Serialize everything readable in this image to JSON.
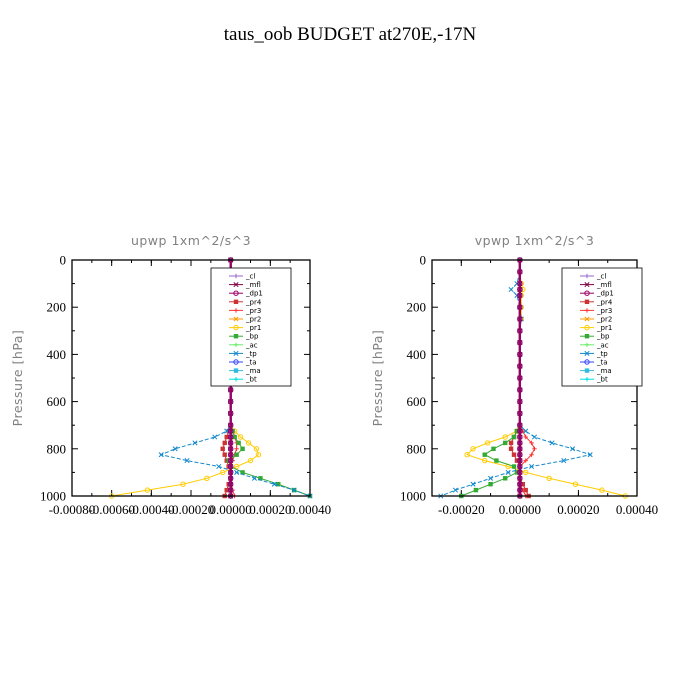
{
  "figure": {
    "title": "taus_oob  BUDGET at270E,-17N"
  },
  "chart_data": [
    {
      "type": "line",
      "title": "upwp   1xm^2/s^3",
      "ylabel": "Pressure [hPa]",
      "xlim": [
        -0.0008,
        0.0004
      ],
      "ylim": [
        1000,
        0
      ],
      "xticks": [
        -0.0008,
        -0.0006,
        -0.0004,
        -0.0002,
        0.0,
        0.0002,
        0.0004
      ],
      "xtick_labels": [
        "-0.00080",
        "-0.00060",
        "-0.00040",
        "-0.00020",
        "0.00000",
        "0.00020",
        "0.00040"
      ],
      "yticks": [
        0,
        200,
        400,
        600,
        800,
        1000
      ],
      "ytick_labels": [
        "0",
        "200",
        "400",
        "600",
        "800",
        "1000"
      ],
      "y": [
        0,
        50,
        100,
        150,
        200,
        250,
        300,
        350,
        400,
        450,
        500,
        550,
        600,
        650,
        700,
        725,
        750,
        775,
        800,
        825,
        850,
        875,
        900,
        925,
        950,
        975,
        1000
      ],
      "legend_position": "top-right",
      "series": [
        {
          "name": "_cl",
          "color": "#9966cc",
          "values": [
            0,
            0,
            0,
            0,
            0,
            0,
            0,
            0,
            0,
            0,
            0,
            0,
            0,
            0,
            0,
            0,
            0,
            0,
            0,
            0,
            0,
            0,
            0,
            0,
            0,
            0,
            0
          ]
        },
        {
          "name": "_mfl",
          "color": "#800040",
          "values": [
            0,
            0,
            0,
            0,
            0,
            0,
            0,
            0,
            0,
            0,
            0,
            0,
            0,
            0,
            0,
            0,
            0,
            0,
            0,
            0,
            0,
            0,
            0,
            0,
            0,
            0,
            0
          ]
        },
        {
          "name": "_dp1",
          "color": "#990066",
          "values": [
            0,
            0,
            0,
            0,
            0,
            0,
            0,
            0,
            0,
            0,
            0,
            0,
            0,
            0,
            0,
            0,
            0,
            0,
            0,
            0,
            0,
            0,
            0,
            0,
            0,
            0,
            0
          ]
        },
        {
          "name": "_pr4",
          "color": "#cc3333",
          "values": [
            0,
            0,
            0,
            0,
            0,
            0,
            0,
            0,
            0,
            0,
            0,
            0,
            0,
            0,
            0,
            -1e-05,
            -2e-05,
            -3e-05,
            -4e-05,
            -3e-05,
            -2e-05,
            -1e-05,
            0,
            0,
            -1e-05,
            -2e-05,
            -3e-05
          ]
        },
        {
          "name": "_pr3",
          "color": "#ff3333",
          "values": [
            0,
            0,
            0,
            0,
            0,
            0,
            0,
            0,
            0,
            0,
            0,
            0,
            0,
            0,
            0,
            1e-05,
            2e-05,
            3e-05,
            3e-05,
            2e-05,
            1e-05,
            0,
            0,
            0,
            0,
            1e-05,
            2e-05
          ]
        },
        {
          "name": "_pr2",
          "color": "#ff9900",
          "values": [
            0,
            0,
            0,
            0,
            0,
            0,
            0,
            0,
            0,
            0,
            0,
            0,
            0,
            0,
            0,
            0,
            0,
            0,
            0,
            0,
            0,
            0,
            0,
            0,
            0,
            0,
            0
          ]
        },
        {
          "name": "_pr1",
          "color": "#ffcc00",
          "values": [
            0,
            0,
            0,
            0,
            0,
            0,
            0,
            0,
            0,
            0,
            0,
            0,
            0,
            0,
            0,
            2e-05,
            5e-05,
            9e-05,
            0.00013,
            0.00014,
            0.0001,
            3e-05,
            -4e-05,
            -0.00012,
            -0.00024,
            -0.00042,
            -0.0006
          ]
        },
        {
          "name": "_bp",
          "color": "#33aa33",
          "values": [
            0,
            0,
            0,
            0,
            0,
            0,
            0,
            0,
            0,
            0,
            0,
            0,
            0,
            0,
            0,
            1e-05,
            2e-05,
            4e-05,
            6e-05,
            3e-05,
            -1e-05,
            0,
            6e-05,
            0.00015,
            0.00024,
            0.00032,
            0.0004
          ]
        },
        {
          "name": "_ac",
          "color": "#66ee66",
          "values": [
            0,
            0,
            0,
            0,
            0,
            0,
            0,
            0,
            0,
            0,
            0,
            0,
            0,
            0,
            0,
            0,
            0,
            0,
            0,
            0,
            0,
            0,
            0,
            0,
            0,
            0,
            0
          ]
        },
        {
          "name": "_tp",
          "color": "#1188cc",
          "values": [
            0,
            0,
            0,
            0,
            0,
            0,
            0,
            0,
            0,
            0,
            0,
            0,
            0,
            0,
            0,
            -2e-05,
            -8e-05,
            -0.00018,
            -0.00028,
            -0.00035,
            -0.00022,
            -6e-05,
            3e-05,
            0.00012,
            0.00022,
            0.00032,
            0.0004
          ]
        },
        {
          "name": "_ta",
          "color": "#3344ff",
          "values": [
            0,
            0,
            0,
            0,
            0,
            0,
            0,
            0,
            0,
            0,
            0,
            0,
            0,
            0,
            0,
            0,
            0,
            0,
            0,
            0,
            0,
            0,
            0,
            0,
            0,
            0,
            0
          ]
        },
        {
          "name": "_ma",
          "color": "#33bbdd",
          "values": [
            0,
            0,
            0,
            0,
            0,
            0,
            0,
            0,
            0,
            0,
            0,
            0,
            0,
            0,
            0,
            0,
            0,
            0,
            0,
            0,
            0,
            0,
            0,
            0,
            0,
            0,
            0
          ]
        },
        {
          "name": "_bt",
          "color": "#00dddd",
          "values": [
            0,
            0,
            0,
            0,
            0,
            0,
            0,
            0,
            0,
            0,
            0,
            0,
            0,
            0,
            0,
            0,
            0,
            0,
            0,
            0,
            0,
            0,
            0,
            0,
            0,
            0,
            0
          ]
        }
      ]
    },
    {
      "type": "line",
      "title": "vpwp   1xm^2/s^3",
      "ylabel": "Pressure [hPa]",
      "xlim": [
        -0.0003,
        0.0004
      ],
      "ylim": [
        1000,
        0
      ],
      "xticks": [
        -0.0002,
        0.0,
        0.0002,
        0.0004
      ],
      "xtick_labels": [
        "-0.00020",
        "0.00000",
        "0.00020",
        "0.00040"
      ],
      "yticks": [
        0,
        200,
        400,
        600,
        800,
        1000
      ],
      "ytick_labels": [
        "0",
        "200",
        "400",
        "600",
        "800",
        "1000"
      ],
      "y": [
        0,
        50,
        100,
        125,
        150,
        200,
        250,
        300,
        350,
        400,
        450,
        500,
        550,
        600,
        650,
        700,
        725,
        750,
        775,
        800,
        825,
        850,
        875,
        900,
        925,
        950,
        975,
        1000
      ],
      "legend_position": "top-right",
      "series": [
        {
          "name": "_cl",
          "color": "#9966cc",
          "values": [
            0,
            0,
            0,
            0,
            0,
            0,
            0,
            0,
            0,
            0,
            0,
            0,
            0,
            0,
            0,
            0,
            0,
            0,
            0,
            0,
            0,
            0,
            0,
            0,
            0,
            0,
            0,
            0
          ]
        },
        {
          "name": "_mfl",
          "color": "#800040",
          "values": [
            0,
            0,
            0,
            0,
            0,
            0,
            0,
            0,
            0,
            0,
            0,
            0,
            0,
            0,
            0,
            0,
            0,
            0,
            0,
            0,
            0,
            0,
            0,
            0,
            0,
            0,
            0,
            0
          ]
        },
        {
          "name": "_dp1",
          "color": "#990066",
          "values": [
            0,
            0,
            0,
            0,
            0,
            0,
            0,
            0,
            0,
            0,
            0,
            0,
            0,
            0,
            0,
            0,
            0,
            0,
            0,
            0,
            0,
            0,
            0,
            0,
            0,
            0,
            0,
            0
          ]
        },
        {
          "name": "_pr4",
          "color": "#cc3333",
          "values": [
            0,
            0,
            0,
            0,
            0,
            0,
            0,
            0,
            0,
            0,
            0,
            0,
            0,
            0,
            0,
            0,
            -1e-05,
            -2e-05,
            -3e-05,
            -3e-05,
            -2e-05,
            -1e-05,
            0,
            0,
            0,
            1e-05,
            2e-05,
            3e-05
          ]
        },
        {
          "name": "_pr3",
          "color": "#ff3333",
          "values": [
            0,
            0,
            0,
            0,
            0,
            0,
            0,
            0,
            0,
            0,
            0,
            0,
            0,
            0,
            0,
            0,
            1e-05,
            2e-05,
            4e-05,
            5e-05,
            4e-05,
            2e-05,
            0,
            0,
            0,
            0,
            1e-05,
            2e-05
          ]
        },
        {
          "name": "_pr2",
          "color": "#ff9900",
          "values": [
            0,
            0,
            0,
            0,
            0,
            0,
            0,
            0,
            0,
            0,
            0,
            0,
            0,
            0,
            0,
            0,
            0,
            0,
            0,
            0,
            0,
            0,
            0,
            0,
            0,
            0,
            0,
            0
          ]
        },
        {
          "name": "_pr1",
          "color": "#ffcc00",
          "values": [
            0,
            0,
            5e-06,
            1e-05,
            5e-06,
            5e-06,
            5e-06,
            0,
            0,
            0,
            0,
            0,
            0,
            0,
            0,
            0,
            -1e-05,
            -5e-05,
            -0.00011,
            -0.00016,
            -0.00018,
            -0.00012,
            -4e-05,
            2e-05,
            0.0001,
            0.00019,
            0.00028,
            0.00036
          ]
        },
        {
          "name": "_bp",
          "color": "#33aa33",
          "values": [
            0,
            0,
            0,
            0,
            0,
            0,
            0,
            0,
            0,
            0,
            0,
            0,
            0,
            0,
            0,
            0,
            -1e-05,
            -2e-05,
            -5e-05,
            -9e-05,
            -0.00012,
            -8e-05,
            -2e-05,
            -1e-05,
            -5e-05,
            -0.0001,
            -0.00015,
            -0.0002
          ]
        },
        {
          "name": "_ac",
          "color": "#66ee66",
          "values": [
            0,
            0,
            0,
            0,
            0,
            0,
            0,
            0,
            0,
            0,
            0,
            0,
            0,
            0,
            0,
            0,
            0,
            0,
            0,
            0,
            0,
            0,
            0,
            0,
            0,
            0,
            0,
            0
          ]
        },
        {
          "name": "_tp",
          "color": "#1188cc",
          "values": [
            0,
            0,
            -1e-05,
            -3e-05,
            -1e-05,
            0,
            5e-06,
            0,
            0,
            0,
            0,
            0,
            0,
            0,
            0,
            0,
            2e-05,
            5e-05,
            0.00011,
            0.00018,
            0.00024,
            0.00015,
            4e-05,
            -4e-05,
            -0.0001,
            -0.00016,
            -0.00022,
            -0.00027
          ]
        },
        {
          "name": "_ta",
          "color": "#3344ff",
          "values": [
            0,
            0,
            0,
            0,
            0,
            0,
            0,
            0,
            0,
            0,
            0,
            0,
            0,
            0,
            0,
            0,
            0,
            0,
            0,
            0,
            0,
            0,
            0,
            0,
            0,
            0,
            0,
            0
          ]
        },
        {
          "name": "_ma",
          "color": "#33bbdd",
          "values": [
            0,
            0,
            0,
            0,
            0,
            0,
            0,
            0,
            0,
            0,
            0,
            0,
            0,
            0,
            0,
            0,
            0,
            0,
            0,
            0,
            0,
            0,
            0,
            0,
            0,
            0,
            0,
            0
          ]
        },
        {
          "name": "_bt",
          "color": "#00dddd",
          "values": [
            0,
            0,
            0,
            0,
            0,
            0,
            0,
            0,
            0,
            0,
            0,
            0,
            0,
            0,
            0,
            0,
            0,
            0,
            0,
            0,
            0,
            0,
            0,
            0,
            0,
            0,
            0,
            0
          ]
        }
      ]
    }
  ]
}
